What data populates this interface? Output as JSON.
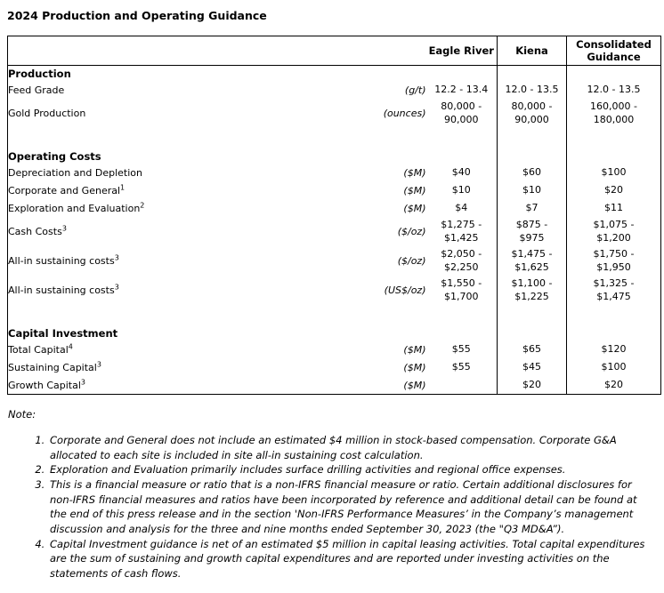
{
  "page": {
    "title": "2024 Production and Operating Guidance"
  },
  "table": {
    "column_headers": [
      "",
      "Eagle River",
      "Kiena",
      "Consolidated Guidance"
    ],
    "rows": [
      {
        "type": "section",
        "label": "Production"
      },
      {
        "type": "data",
        "label": "Feed Grade",
        "sup": "",
        "unit": "(g/t)",
        "values": [
          "12.2 - 13.4",
          "12.0 - 13.5",
          "12.0 - 13.5"
        ]
      },
      {
        "type": "data",
        "label": "Gold Production",
        "sup": "",
        "unit": "(ounces)",
        "values": [
          "80,000 -\n90,000",
          "80,000 -\n90,000",
          "160,000 -\n180,000"
        ]
      },
      {
        "type": "blank"
      },
      {
        "type": "section",
        "label": "Operating Costs"
      },
      {
        "type": "data",
        "label": "Depreciation and Depletion",
        "sup": "",
        "unit": "($M)",
        "values": [
          "$40",
          "$60",
          "$100"
        ]
      },
      {
        "type": "data",
        "label": "Corporate and General",
        "sup": "1",
        "unit": "($M)",
        "values": [
          "$10",
          "$10",
          "$20"
        ]
      },
      {
        "type": "data",
        "label": "Exploration and Evaluation",
        "sup": "2",
        "unit": "($M)",
        "values": [
          "$4",
          "$7",
          "$11"
        ]
      },
      {
        "type": "data",
        "label": "Cash Costs",
        "sup": "3",
        "unit": "($/oz)",
        "values": [
          "$1,275 -\n$1,425",
          "$875 -\n$975",
          "$1,075 -\n$1,200"
        ]
      },
      {
        "type": "data",
        "label": "All-in sustaining costs",
        "sup": "3",
        "unit": "($/oz)",
        "values": [
          "$2,050 -\n$2,250",
          "$1,475 -\n$1,625",
          "$1,750 -\n$1,950"
        ]
      },
      {
        "type": "data",
        "label": "All-in sustaining costs",
        "sup": "3",
        "unit": "(US$/oz)",
        "values": [
          "$1,550 -\n$1,700",
          "$1,100 -\n$1,225",
          "$1,325 -\n$1,475"
        ]
      },
      {
        "type": "blank"
      },
      {
        "type": "section",
        "label": "Capital Investment"
      },
      {
        "type": "data",
        "label": "Total Capital",
        "sup": "4",
        "unit": "($M)",
        "values": [
          "$55",
          "$65",
          "$120"
        ]
      },
      {
        "type": "data",
        "label": "Sustaining Capital",
        "sup": "3",
        "unit": "($M)",
        "values": [
          "$55",
          "$45",
          "$100"
        ]
      },
      {
        "type": "data",
        "label": "Growth Capital",
        "sup": "3",
        "unit": "($M)",
        "values": [
          "",
          "$20",
          "$20"
        ]
      }
    ]
  },
  "notes": {
    "heading": "Note:",
    "items": [
      "Corporate and General does not include an estimated $4 million in stock-based compensation. Corporate G&A allocated to each site is included in site all-in sustaining cost calculation.",
      "Exploration and Evaluation primarily includes surface drilling activities and regional office expenses.",
      "This is a financial measure or ratio that is a non-IFRS financial measure or ratio. Certain additional disclosures for non-IFRS financial measures and ratios have been incorporated by reference and additional detail can be found at the end of this press release and in the section 'Non-IFRS Performance Measures’ in the Company’s management discussion and analysis for the three and nine months ended September 30, 2023 (the \"Q3 MD&A”).",
      "Capital Investment guidance is net of an estimated $5 million in capital leasing activities. Total capital expenditures are the sum of sustaining and growth capital expenditures and are reported under investing activities on the statements of cash flows."
    ]
  },
  "colors": {
    "text": "#000000",
    "border": "#000000",
    "background": "#ffffff"
  }
}
